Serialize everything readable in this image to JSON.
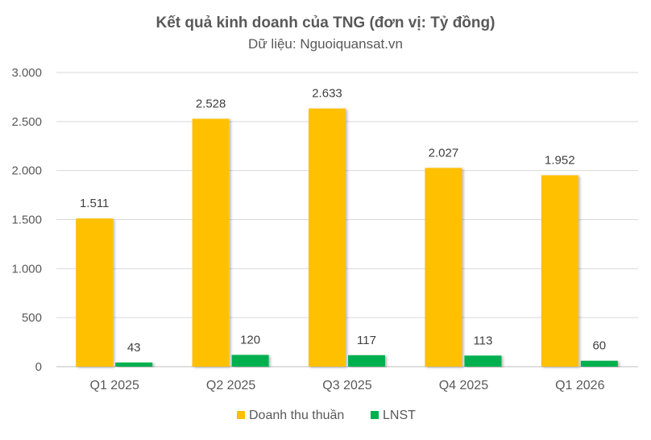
{
  "chart_data": {
    "type": "bar",
    "title": "Kết quả kinh doanh của TNG (đơn vị: Tỷ đồng)",
    "subtitle": "Dữ liệu: Nguoiquansat.vn",
    "categories": [
      "Q1 2025",
      "Q2 2025",
      "Q3 2025",
      "Q4 2025",
      "Q1 2026"
    ],
    "series": [
      {
        "name": "Doanh thu thuần",
        "color": "#FFC000",
        "values": [
          1511,
          2528,
          2633,
          2027,
          1952
        ],
        "labels": [
          "1.511",
          "2.528",
          "2.633",
          "2.027",
          "1.952"
        ]
      },
      {
        "name": "LNST",
        "color": "#00B050",
        "values": [
          43,
          120,
          117,
          113,
          60
        ],
        "labels": [
          "43",
          "120",
          "117",
          "113",
          "60"
        ]
      }
    ],
    "ylim": [
      0,
      3000
    ],
    "yticks": [
      0,
      500,
      1000,
      1500,
      2000,
      2500,
      3000
    ],
    "ytick_labels": [
      "0",
      "500",
      "1.000",
      "1.500",
      "2.000",
      "2.500",
      "3.000"
    ],
    "xlabel": "",
    "ylabel": "",
    "grid": true,
    "legend_position": "bottom"
  }
}
